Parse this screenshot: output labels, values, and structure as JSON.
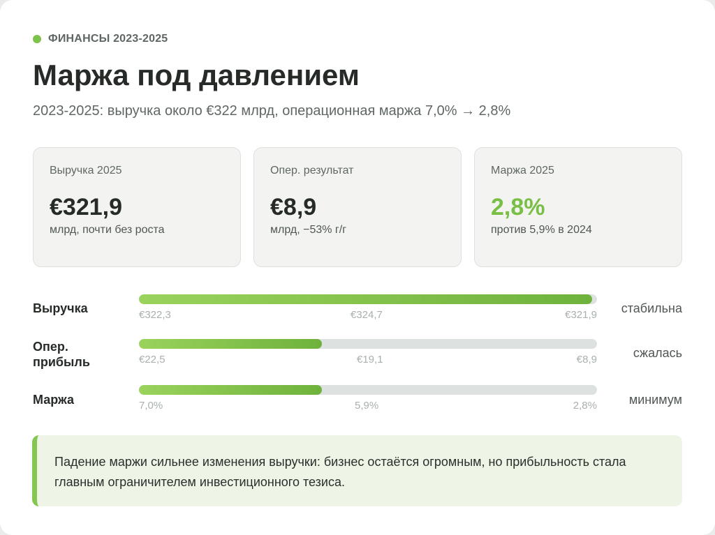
{
  "header": {
    "eyebrow": "ФИНАНСЫ 2023-2025",
    "title": "Маржа под давлением",
    "subtitle": "2023-2025: выручка около €322 млрд, операционная маржа 7,0% → 2,8%"
  },
  "kpis": [
    {
      "label": "Выручка 2025",
      "value": "€321,9",
      "note": "млрд, почти без роста"
    },
    {
      "label": "Опер. результат",
      "value": "€8,9",
      "note": "млрд, −53% г/г"
    },
    {
      "label": "Маржа 2025",
      "value": "2,8%",
      "note": "против 5,9% в 2024"
    }
  ],
  "rows": [
    {
      "label": "Выручка",
      "fill_pct": 99,
      "ticks": [
        "€322,3",
        "€324,7",
        "€321,9"
      ],
      "status": "стабильна"
    },
    {
      "label": "Опер. прибыль",
      "fill_pct": 40,
      "ticks": [
        "€22,5",
        "€19,1",
        "€8,9"
      ],
      "status": "сжалась"
    },
    {
      "label": "Маржа",
      "fill_pct": 40,
      "ticks": [
        "7,0%",
        "5,9%",
        "2,8%"
      ],
      "status": "минимум"
    }
  ],
  "callout": "Падение маржи сильнее изменения выручки: бизнес остаётся огромным, но прибыльность стала главным ограничителем инвестиционного тезиса.",
  "colors": {
    "accent": "#79bf45",
    "track": "#dde2e0",
    "callout_bg": "#eef5e6"
  }
}
